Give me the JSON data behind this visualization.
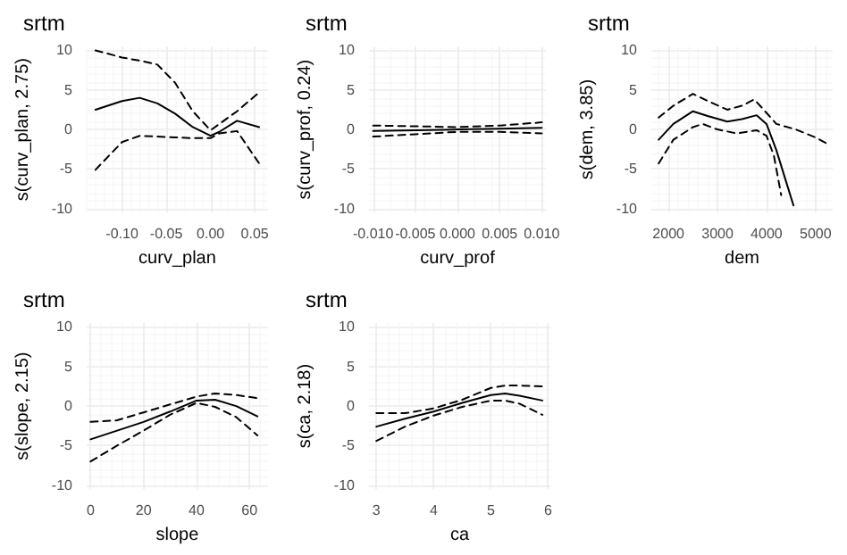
{
  "chart_data": [
    {
      "type": "line",
      "title": "srtm",
      "xlabel": "curv_plan",
      "ylabel": "s(curv_plan, 2.75)",
      "grid": true,
      "xlim": [
        -0.14,
        0.065
      ],
      "xticks": [
        {
          "value": -0.1,
          "label": "-0.10"
        },
        {
          "value": -0.05,
          "label": "-0.05"
        },
        {
          "value": 0,
          "label": "0.00"
        },
        {
          "value": 0.05,
          "label": "0.05"
        }
      ],
      "ylim": [
        -10.5,
        10.5
      ],
      "yticks": [
        -10,
        -5,
        0,
        5,
        10
      ],
      "x": [
        -0.13,
        -0.1,
        -0.08,
        -0.06,
        -0.04,
        -0.02,
        0.0,
        0.01,
        0.03,
        0.055
      ],
      "series": [
        {
          "color": "#000000",
          "line_style": "solid",
          "values": [
            2.5,
            3.6,
            4.0,
            3.3,
            2.0,
            0.3,
            -0.8,
            -0.3,
            1.1,
            0.3
          ]
        },
        {
          "color": "#000000",
          "line_style": "dashed",
          "values": [
            10,
            9.1,
            8.7,
            8.2,
            5.9,
            2.3,
            -0.1,
            0.7,
            2.3,
            4.7
          ]
        },
        {
          "color": "#000000",
          "line_style": "dashed",
          "values": [
            -5.1,
            -1.6,
            -0.8,
            -0.9,
            -1.0,
            -1.1,
            -1.1,
            -0.5,
            -0.2,
            -4.3
          ]
        }
      ]
    },
    {
      "type": "line",
      "title": "srtm",
      "xlabel": "curv_prof",
      "ylabel": "s(curv_prof, 0.24)",
      "grid": true,
      "xlim": [
        -0.0105,
        0.0105
      ],
      "xticks": [
        {
          "value": -0.01,
          "label": "-0.010"
        },
        {
          "value": -0.005,
          "label": "-0.005"
        },
        {
          "value": 0,
          "label": "0.000"
        },
        {
          "value": 0.005,
          "label": "0.005"
        },
        {
          "value": 0.01,
          "label": "0.010"
        }
      ],
      "ylim": [
        -10.5,
        10.5
      ],
      "yticks": [
        -10,
        -5,
        0,
        5,
        10
      ],
      "x": [
        -0.01,
        -0.005,
        0.0,
        0.005,
        0.01
      ],
      "series": [
        {
          "color": "#000000",
          "line_style": "solid",
          "values": [
            -0.2,
            -0.1,
            0.0,
            0.1,
            0.2
          ]
        },
        {
          "color": "#000000",
          "line_style": "dashed",
          "values": [
            0.5,
            0.4,
            0.3,
            0.5,
            0.9
          ]
        },
        {
          "color": "#000000",
          "line_style": "dashed",
          "values": [
            -0.9,
            -0.6,
            -0.3,
            -0.3,
            -0.5
          ]
        }
      ]
    },
    {
      "type": "line",
      "title": "srtm",
      "xlabel": "dem",
      "ylabel": "s(dem, 3.85)",
      "grid": true,
      "xlim": [
        1650,
        5350
      ],
      "xticks": [
        2000,
        3000,
        4000,
        5000
      ],
      "ylim": [
        -10.5,
        10.5
      ],
      "yticks": [
        -10,
        -5,
        0,
        5,
        10
      ],
      "series": [
        {
          "color": "#000000",
          "line_style": "solid",
          "x": [
            1800,
            2100,
            2500,
            2800,
            3200,
            3500,
            3800,
            4000,
            4200,
            4400,
            4550
          ],
          "values": [
            -1.3,
            0.7,
            2.3,
            1.7,
            1.0,
            1.3,
            1.8,
            0.7,
            -2.6,
            -6.6,
            -9.6
          ]
        },
        {
          "color": "#000000",
          "line_style": "dashed",
          "x": [
            1800,
            2100,
            2500,
            2800,
            3200,
            3500,
            3750,
            4000,
            4200,
            4600,
            5000,
            5300
          ],
          "values": [
            1.5,
            3.0,
            4.5,
            3.6,
            2.5,
            3.0,
            3.8,
            2.1,
            0.7,
            0.0,
            -1.0,
            -2.0
          ]
        },
        {
          "color": "#000000",
          "line_style": "dashed",
          "x": [
            1800,
            2100,
            2500,
            2700,
            3000,
            3400,
            3800,
            4000,
            4150,
            4300
          ],
          "values": [
            -4.3,
            -1.3,
            0.3,
            0.7,
            0.0,
            -0.5,
            -0.1,
            -0.8,
            -3.3,
            -8.3
          ]
        }
      ]
    },
    {
      "type": "line",
      "title": "srtm",
      "xlabel": "slope",
      "ylabel": "s(slope, 2.15)",
      "grid": true,
      "xlim": [
        -1.5,
        67
      ],
      "xticks": [
        0,
        20,
        40,
        60
      ],
      "ylim": [
        -10.5,
        10.5
      ],
      "yticks": [
        -10,
        -5,
        0,
        5,
        10
      ],
      "x": [
        0,
        10,
        20,
        30,
        40,
        47,
        55,
        63
      ],
      "series": [
        {
          "color": "#000000",
          "line_style": "solid",
          "values": [
            -4.2,
            -3.1,
            -2.0,
            -0.7,
            0.7,
            0.8,
            0.0,
            -1.3
          ]
        },
        {
          "color": "#000000",
          "line_style": "dashed",
          "values": [
            -2.0,
            -1.8,
            -0.8,
            0.2,
            1.2,
            1.6,
            1.4,
            1.0
          ]
        },
        {
          "color": "#000000",
          "line_style": "dashed",
          "values": [
            -7.0,
            -5.0,
            -3.1,
            -1.1,
            0.4,
            -0.1,
            -1.4,
            -3.7
          ]
        }
      ]
    },
    {
      "type": "line",
      "title": "srtm",
      "xlabel": "ca",
      "ylabel": "s(ca, 2.18)",
      "grid": true,
      "xlim": [
        2.87,
        6.04
      ],
      "xticks": [
        3,
        4,
        5,
        6
      ],
      "ylim": [
        -10.5,
        10.5
      ],
      "yticks": [
        -10,
        -5,
        0,
        5,
        10
      ],
      "x": [
        3.0,
        3.5,
        4.0,
        4.5,
        5.0,
        5.25,
        5.5,
        5.9
      ],
      "series": [
        {
          "color": "#000000",
          "line_style": "solid",
          "values": [
            -2.6,
            -1.6,
            -0.7,
            0.4,
            1.4,
            1.6,
            1.3,
            0.7
          ]
        },
        {
          "color": "#000000",
          "line_style": "dashed",
          "values": [
            -0.9,
            -0.9,
            -0.3,
            0.8,
            2.3,
            2.6,
            2.6,
            2.5
          ]
        },
        {
          "color": "#000000",
          "line_style": "dashed",
          "values": [
            -4.4,
            -2.6,
            -1.2,
            -0.1,
            0.7,
            0.7,
            0.3,
            -1.1
          ]
        }
      ]
    }
  ]
}
